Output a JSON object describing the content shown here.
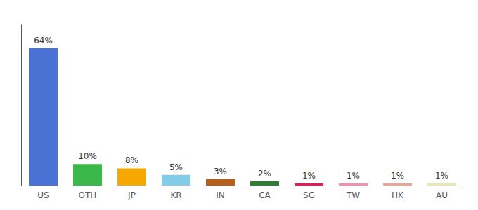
{
  "chart_data": {
    "type": "bar",
    "categories": [
      "US",
      "OTH",
      "JP",
      "KR",
      "IN",
      "CA",
      "SG",
      "TW",
      "HK",
      "AU"
    ],
    "values": [
      64,
      10,
      8,
      5,
      3,
      2,
      1,
      1,
      1,
      1
    ],
    "value_labels": [
      "64%",
      "10%",
      "8%",
      "5%",
      "3%",
      "2%",
      "1%",
      "1%",
      "1%",
      "1%"
    ],
    "colors": [
      "#4a72d4",
      "#3cb84a",
      "#f5a800",
      "#85cce8",
      "#b5601a",
      "#2d7d32",
      "#e8185a",
      "#f48fb1",
      "#e8a898",
      "#e8e8b0"
    ],
    "ylim": [
      0,
      75
    ],
    "grid": false,
    "data_labels": true,
    "tick_labels": "x"
  }
}
